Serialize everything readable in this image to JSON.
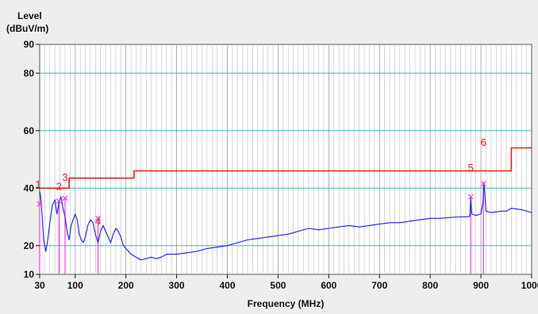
{
  "chart_data": {
    "type": "line",
    "ylabel_line1": "Level",
    "ylabel_line2": "(dBuV/m)",
    "xlabel": "Frequency (MHz)",
    "xscale": "linear",
    "xlim": [
      30,
      1000
    ],
    "ylim": [
      10,
      90
    ],
    "x_ticks": [
      30,
      100,
      200,
      300,
      400,
      500,
      600,
      700,
      800,
      900,
      1000
    ],
    "x_tick_labels": [
      "30",
      "100",
      "200",
      "300",
      "400",
      "500",
      "600",
      "700",
      "800",
      "900",
      "1000"
    ],
    "y_ticks": [
      10,
      20,
      40,
      60,
      80,
      90
    ],
    "y_tick_labels": [
      "10",
      "20",
      "40",
      "60",
      "80",
      "90"
    ],
    "major_y_gridlines": [
      20,
      40,
      60,
      80
    ],
    "grid": true,
    "colors": {
      "trace": "#1a1aff",
      "limit": "#e02020",
      "marker": "#ff33ff",
      "major_grid": "#33bbbb",
      "minor_grid": "#bbbbbb"
    },
    "series": [
      {
        "role": "measured-trace",
        "x": [
          30,
          32,
          35,
          38,
          42,
          46,
          50,
          55,
          60,
          64,
          68,
          72,
          76,
          80,
          84,
          88,
          92,
          96,
          100,
          104,
          108,
          112,
          116,
          120,
          125,
          130,
          135,
          140,
          145,
          150,
          155,
          160,
          165,
          170,
          175,
          180,
          185,
          190,
          195,
          200,
          205,
          210,
          220,
          230,
          240,
          250,
          260,
          270,
          280,
          300,
          320,
          340,
          360,
          380,
          400,
          420,
          440,
          460,
          480,
          500,
          520,
          540,
          560,
          580,
          600,
          620,
          640,
          660,
          680,
          700,
          720,
          740,
          760,
          780,
          800,
          820,
          840,
          860,
          870,
          878,
          880,
          882,
          890,
          900,
          904,
          906,
          910,
          920,
          940,
          950,
          960,
          980,
          1000
        ],
        "y": [
          39,
          37,
          30,
          22,
          18,
          22,
          28,
          34,
          36,
          31,
          35,
          37,
          33,
          30,
          25,
          22,
          27,
          29,
          31,
          29,
          24,
          22,
          21,
          23,
          27,
          29,
          28,
          24,
          21,
          25,
          27,
          25,
          23,
          21,
          24,
          26,
          25,
          23,
          20,
          19,
          18,
          17,
          16,
          15,
          15.5,
          16,
          15.5,
          16,
          17,
          17,
          17.5,
          18,
          19,
          19.5,
          20,
          21,
          22,
          22.5,
          23,
          23.5,
          24,
          25,
          26,
          25.5,
          26,
          26.5,
          27,
          26.5,
          27,
          27.5,
          28,
          28,
          28.5,
          29,
          29.5,
          29.5,
          29.8,
          30,
          30,
          30.2,
          36.5,
          31,
          30.5,
          31,
          35,
          42,
          32,
          31.5,
          32,
          32,
          33,
          32.5,
          31.5
        ]
      },
      {
        "role": "limit-line",
        "x": [
          30,
          88,
          88,
          216,
          216,
          960,
          960,
          1000
        ],
        "y": [
          40,
          40,
          43.5,
          43.5,
          46,
          46,
          54,
          54
        ]
      }
    ],
    "markers": [
      {
        "label": "1",
        "x": 30,
        "y": 34.5
      },
      {
        "label": "2",
        "x": 68,
        "y": 35.5
      },
      {
        "label": "3",
        "x": 80,
        "y": 36.5
      },
      {
        "label": "4",
        "x": 145,
        "y": 29.5
      },
      {
        "label": "5",
        "x": 880,
        "y": 37
      },
      {
        "label": "6",
        "x": 905,
        "y": 41.5
      }
    ]
  }
}
